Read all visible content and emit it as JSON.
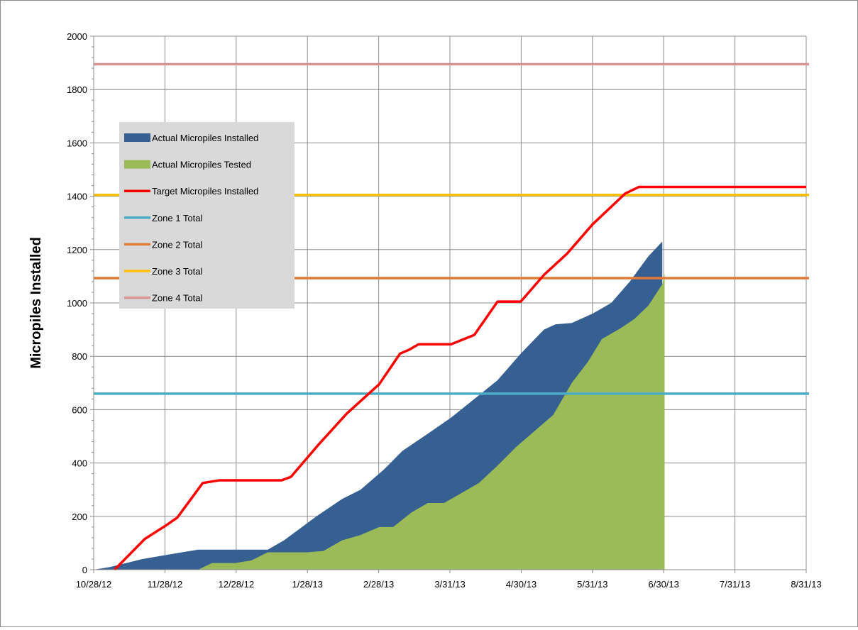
{
  "chart_data": {
    "type": "area",
    "xlabel": "",
    "ylabel": "Micropiles Installed",
    "ylim": [
      0,
      2000
    ],
    "y_ticks": [
      0,
      200,
      400,
      600,
      800,
      1000,
      1200,
      1400,
      1600,
      1800,
      2000
    ],
    "x_tick_labels": [
      "10/28/12",
      "11/28/12",
      "12/28/12",
      "1/28/13",
      "2/28/13",
      "3/31/13",
      "4/30/13",
      "5/31/13",
      "6/30/13",
      "7/31/13",
      "8/31/13"
    ],
    "xlim": [
      "2012-10-28",
      "2013-08-31"
    ],
    "grid": true,
    "legend_position": "upper-left",
    "series": [
      {
        "name": "Actual Micropiles Installed",
        "kind": "area",
        "color": "#376092",
        "points": [
          [
            "2012-10-28",
            0
          ],
          [
            "2012-11-04",
            10
          ],
          [
            "2012-11-18",
            40
          ],
          [
            "2012-11-28",
            55
          ],
          [
            "2012-12-12",
            75
          ],
          [
            "2012-12-28",
            75
          ],
          [
            "2013-01-11",
            75
          ],
          [
            "2013-01-18",
            110
          ],
          [
            "2013-02-01",
            200
          ],
          [
            "2013-02-12",
            265
          ],
          [
            "2013-02-20",
            300
          ],
          [
            "2013-03-02",
            375
          ],
          [
            "2013-03-10",
            445
          ],
          [
            "2013-03-21",
            510
          ],
          [
            "2013-03-31",
            570
          ],
          [
            "2013-04-10",
            640
          ],
          [
            "2013-04-20",
            710
          ],
          [
            "2013-04-30",
            810
          ],
          [
            "2013-05-10",
            900
          ],
          [
            "2013-05-15",
            920
          ],
          [
            "2013-05-22",
            925
          ],
          [
            "2013-05-31",
            960
          ],
          [
            "2013-06-08",
            1000
          ],
          [
            "2013-06-16",
            1080
          ],
          [
            "2013-06-24",
            1175
          ],
          [
            "2013-06-30",
            1230
          ]
        ]
      },
      {
        "name": "Actual Micropiles Tested",
        "kind": "area",
        "color": "#9bbb59",
        "points": [
          [
            "2012-10-28",
            0
          ],
          [
            "2012-12-12",
            0
          ],
          [
            "2012-12-18",
            25
          ],
          [
            "2012-12-28",
            25
          ],
          [
            "2013-01-04",
            35
          ],
          [
            "2013-01-11",
            65
          ],
          [
            "2013-01-28",
            65
          ],
          [
            "2013-02-04",
            70
          ],
          [
            "2013-02-12",
            110
          ],
          [
            "2013-02-20",
            130
          ],
          [
            "2013-02-28",
            160
          ],
          [
            "2013-03-06",
            160
          ],
          [
            "2013-03-14",
            215
          ],
          [
            "2013-03-21",
            250
          ],
          [
            "2013-03-28",
            250
          ],
          [
            "2013-04-05",
            290
          ],
          [
            "2013-04-12",
            325
          ],
          [
            "2013-04-20",
            390
          ],
          [
            "2013-04-28",
            460
          ],
          [
            "2013-05-06",
            520
          ],
          [
            "2013-05-14",
            580
          ],
          [
            "2013-05-22",
            700
          ],
          [
            "2013-05-29",
            780
          ],
          [
            "2013-06-04",
            865
          ],
          [
            "2013-06-12",
            905
          ],
          [
            "2013-06-18",
            940
          ],
          [
            "2013-06-24",
            990
          ],
          [
            "2013-06-30",
            1070
          ],
          [
            "2013-07-01",
            1110
          ]
        ]
      },
      {
        "name": "Target Micropiles Installed",
        "kind": "line",
        "color": "#ff0000",
        "points": [
          [
            "2012-11-06",
            0
          ],
          [
            "2012-11-19",
            115
          ],
          [
            "2012-11-28",
            165
          ],
          [
            "2012-12-03",
            195
          ],
          [
            "2012-12-14",
            325
          ],
          [
            "2012-12-21",
            335
          ],
          [
            "2013-01-17",
            335
          ],
          [
            "2013-01-21",
            348
          ],
          [
            "2013-02-02",
            470
          ],
          [
            "2013-02-14",
            585
          ],
          [
            "2013-02-28",
            695
          ],
          [
            "2013-03-09",
            810
          ],
          [
            "2013-03-13",
            825
          ],
          [
            "2013-03-17",
            845
          ],
          [
            "2013-03-31",
            845
          ],
          [
            "2013-04-10",
            880
          ],
          [
            "2013-04-20",
            1005
          ],
          [
            "2013-04-30",
            1005
          ],
          [
            "2013-05-10",
            1105
          ],
          [
            "2013-05-20",
            1185
          ],
          [
            "2013-05-31",
            1295
          ],
          [
            "2013-06-14",
            1410
          ],
          [
            "2013-06-20",
            1435
          ],
          [
            "2013-08-31",
            1435
          ]
        ]
      },
      {
        "name": "Zone 1 Total",
        "kind": "hline",
        "color": "#4bacc6",
        "value": 660
      },
      {
        "name": "Zone 2 Total",
        "kind": "hline",
        "color": "#e07b39",
        "value": 1093
      },
      {
        "name": "Zone 3 Total",
        "kind": "hline",
        "color": "#ffc000",
        "value": 1405
      },
      {
        "name": "Zone 4 Total",
        "kind": "hline",
        "color": "#d99594",
        "value": 1895
      }
    ]
  }
}
